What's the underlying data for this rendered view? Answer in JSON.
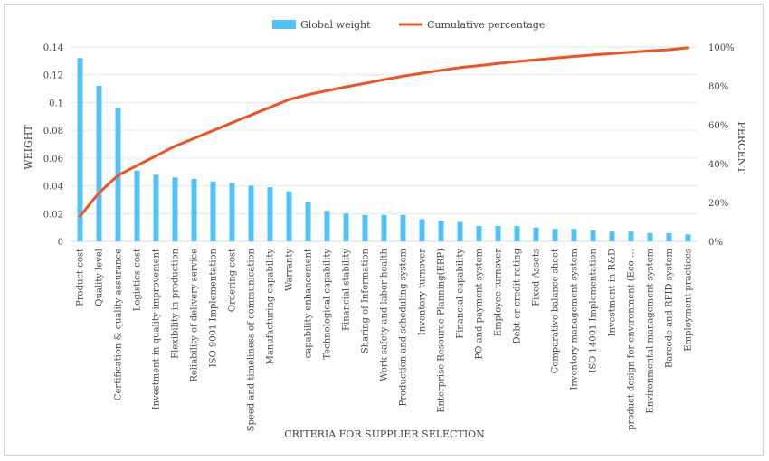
{
  "chart_data": {
    "type": "bar",
    "xlabel": "CRITERIA FOR SUPPLIER SELECTION",
    "ylabel": "WEIGHT",
    "y2label": "PERCENT",
    "ylim": [
      0,
      0.14
    ],
    "y2lim": [
      0,
      100
    ],
    "yticks": [
      "0",
      "0.02",
      "0.04",
      "0.06",
      "0.08",
      "0.1",
      "0.12",
      "0.14"
    ],
    "y2ticks": [
      "0%",
      "20%",
      "40%",
      "60%",
      "80%",
      "100%"
    ],
    "legend_position": "top",
    "colors": {
      "bar": "#4FC3F7",
      "line": "#F4511E"
    },
    "categories": [
      "Product cost",
      "Quality level",
      "Certification & quality assurance",
      "Logistics cost",
      "Investment in quality improvement",
      "Flexibility in production",
      "Reliability of delivery service",
      "ISO 9001 Implementation",
      "Ordering cost",
      "Speed and timeliness of communication",
      "Manufacturing capability",
      "Warranty",
      "capability enhancement",
      "Technological capability",
      "Financial stability",
      "Sharing of Information",
      "Work safety and labor health",
      "Production and scheduling system",
      "Inventory turnover",
      "Enterprise Resource Planning(ERP)",
      "Financial capability",
      "PO and payment system",
      "Employee turnover",
      "Debt or credit rating",
      "Fixed Assets",
      "Comparative balance sheet",
      "Inventory management system",
      "ISO 14001 Implementation",
      "Investment in R&D",
      "product design for environment (Eco-…",
      "Environmental management system",
      "Barcode and RFID system",
      "Employment practices"
    ],
    "series": [
      {
        "name": "Global weight",
        "type": "bar",
        "axis": "left",
        "values": [
          0.132,
          0.112,
          0.096,
          0.051,
          0.048,
          0.046,
          0.045,
          0.043,
          0.042,
          0.04,
          0.039,
          0.036,
          0.028,
          0.022,
          0.02,
          0.019,
          0.019,
          0.019,
          0.016,
          0.015,
          0.014,
          0.011,
          0.011,
          0.011,
          0.01,
          0.009,
          0.009,
          0.008,
          0.007,
          0.007,
          0.006,
          0.006,
          0.005
        ]
      },
      {
        "name": "Cumulative percentage",
        "type": "line",
        "axis": "right",
        "values": [
          13,
          25,
          34,
          39,
          44,
          49,
          53,
          57,
          61,
          65,
          69,
          73,
          75.5,
          77.5,
          79.5,
          81.3,
          83.2,
          85,
          86.5,
          88,
          89.4,
          90.4,
          91.5,
          92.5,
          93.4,
          94.3,
          95.1,
          95.9,
          96.6,
          97.3,
          98,
          98.6,
          99.6
        ]
      }
    ]
  }
}
